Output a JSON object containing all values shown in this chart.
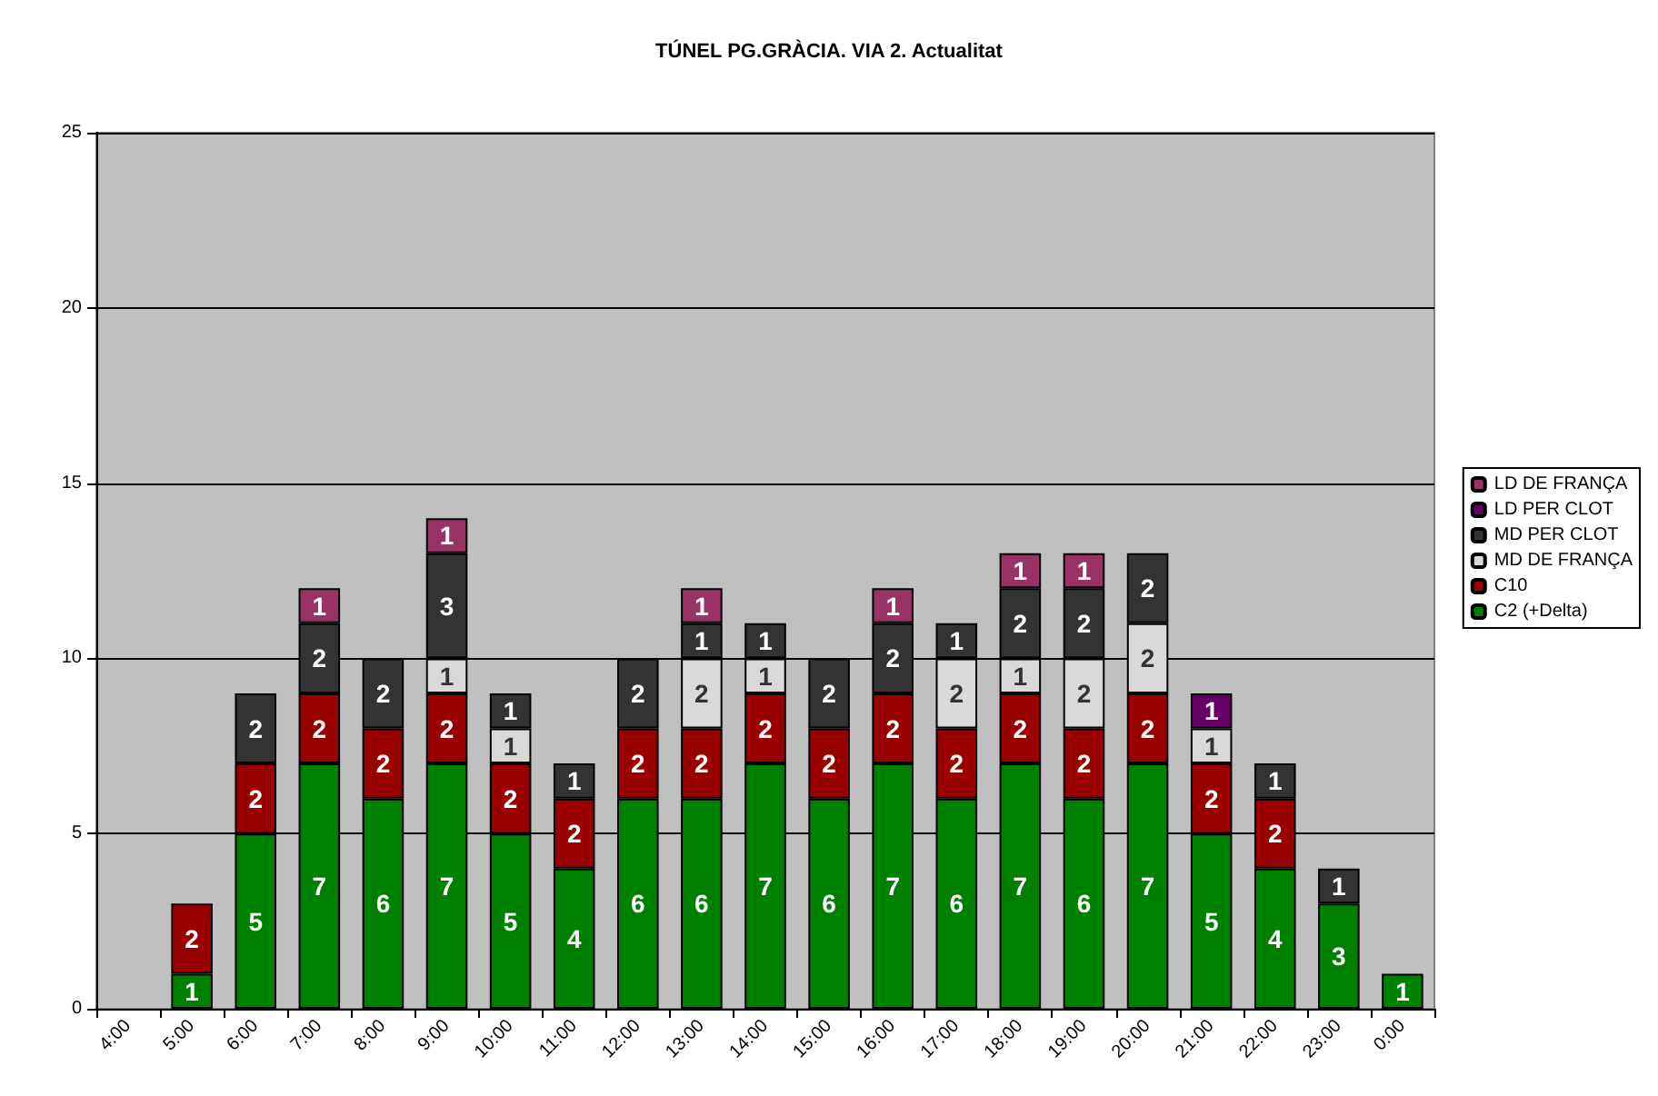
{
  "chart_data": {
    "type": "bar",
    "title": "TÚNEL PG.GRÀCIA. VIA 2. Actualitat",
    "categories": [
      "4:00",
      "5:00",
      "6:00",
      "7:00",
      "8:00",
      "9:00",
      "10:00",
      "11:00",
      "12:00",
      "13:00",
      "14:00",
      "15:00",
      "16:00",
      "17:00",
      "18:00",
      "19:00",
      "20:00",
      "21:00",
      "22:00",
      "23:00",
      "0:00"
    ],
    "series": [
      {
        "name": "C2 (+Delta)",
        "color": "#008000",
        "values": [
          null,
          1,
          5,
          7,
          6,
          7,
          5,
          4,
          6,
          6,
          7,
          6,
          7,
          6,
          7,
          6,
          7,
          5,
          4,
          3,
          1
        ]
      },
      {
        "name": "C10",
        "color": "#990000",
        "values": [
          null,
          2,
          2,
          2,
          2,
          2,
          2,
          2,
          2,
          2,
          2,
          2,
          2,
          2,
          2,
          2,
          2,
          2,
          2,
          null,
          null
        ]
      },
      {
        "name": "MD DE FRANÇA",
        "color": "#d9d9d9",
        "values": [
          null,
          null,
          null,
          null,
          null,
          1,
          1,
          null,
          null,
          2,
          1,
          null,
          null,
          2,
          1,
          2,
          2,
          1,
          null,
          null,
          null
        ]
      },
      {
        "name": "MD PER CLOT",
        "color": "#333333",
        "values": [
          null,
          null,
          2,
          2,
          2,
          3,
          1,
          1,
          2,
          1,
          1,
          2,
          2,
          1,
          2,
          2,
          2,
          null,
          1,
          1,
          null
        ]
      },
      {
        "name": "LD PER CLOT",
        "color": "#660066",
        "values": [
          null,
          null,
          null,
          null,
          null,
          null,
          null,
          null,
          null,
          null,
          null,
          null,
          null,
          null,
          null,
          null,
          null,
          1,
          null,
          null,
          null
        ]
      },
      {
        "name": "LD DE FRANÇA",
        "color": "#993366",
        "values": [
          null,
          null,
          null,
          1,
          null,
          1,
          null,
          null,
          null,
          1,
          null,
          null,
          1,
          null,
          1,
          1,
          null,
          null,
          null,
          null,
          null
        ]
      }
    ],
    "stacked": true,
    "data_labels": true,
    "ylim": [
      0,
      25
    ],
    "yticks": [
      0,
      5,
      10,
      15,
      20,
      25
    ],
    "grid": "y",
    "legend": "right"
  }
}
